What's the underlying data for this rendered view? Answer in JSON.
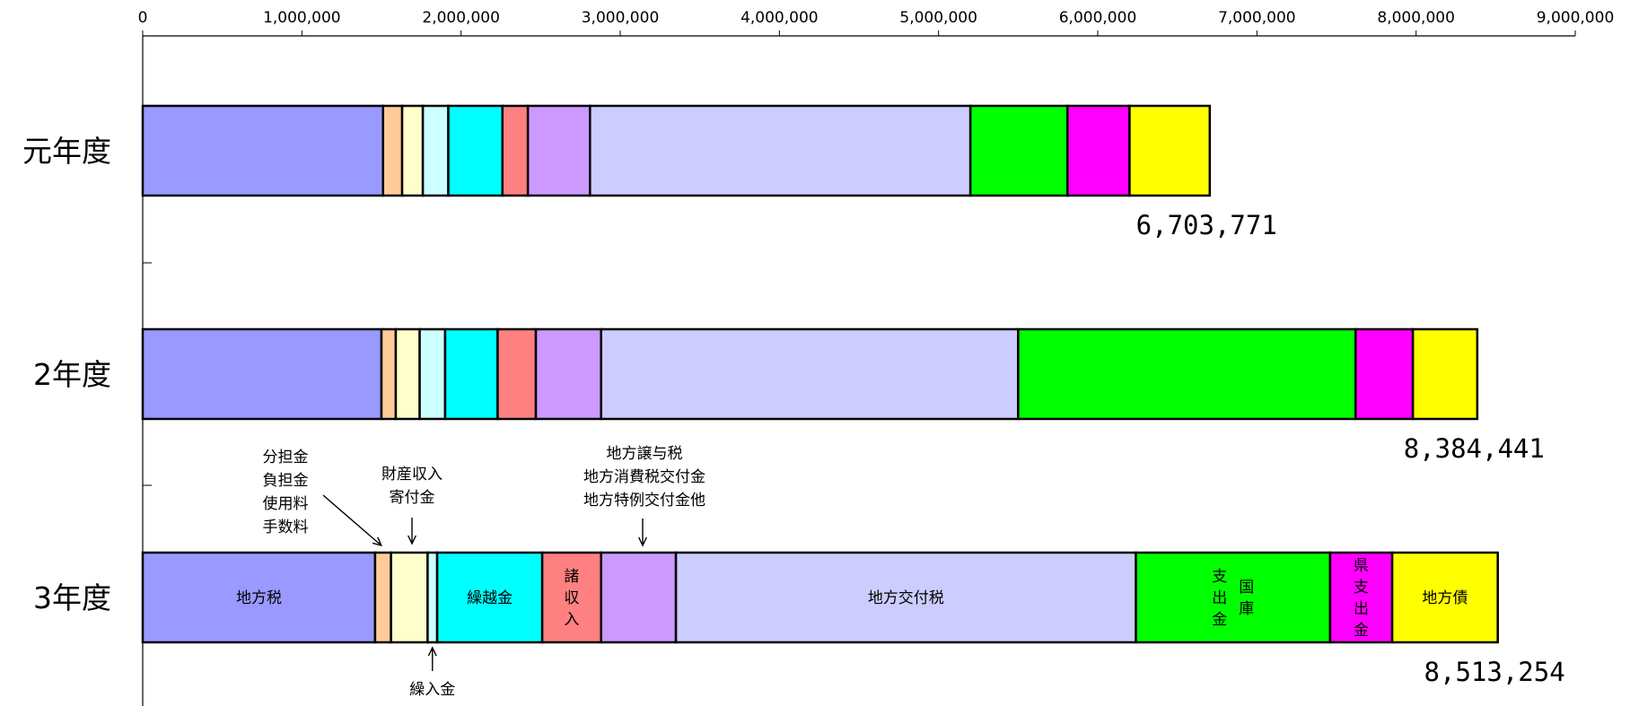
{
  "chart_data": {
    "type": "bar",
    "orientation": "horizontal",
    "stacked": true,
    "xlim": [
      0,
      9000000
    ],
    "xticks": [
      "0",
      "1,000,000",
      "2,000,000",
      "3,000,000",
      "4,000,000",
      "5,000,000",
      "6,000,000",
      "7,000,000",
      "8,000,000",
      "9,000,000"
    ],
    "grid": false,
    "legend": "none",
    "categories": [
      "元年度",
      "2年度",
      "3年度"
    ],
    "totals": [
      "6,703,771",
      "8,384,441",
      "8,513,254"
    ],
    "series": [
      {
        "name": "地方税",
        "color": "#9999ff",
        "values": [
          1510000,
          1500000,
          1460000
        ]
      },
      {
        "name": "分担金 負担金 使用料 手数料",
        "color": "#ffcc99",
        "values": [
          120000,
          90000,
          100000
        ]
      },
      {
        "name": "財産収入 寄付金",
        "color": "#ffffcc",
        "values": [
          130000,
          150000,
          230000
        ]
      },
      {
        "name": "繰入金",
        "color": "#ccffff",
        "values": [
          160000,
          160000,
          60000
        ]
      },
      {
        "name": "繰越金",
        "color": "#00ffff",
        "values": [
          340000,
          330000,
          660000
        ]
      },
      {
        "name": "諸収入",
        "color": "#ff8080",
        "values": [
          160000,
          240000,
          370000
        ]
      },
      {
        "name": "地方譲与税 地方消費税交付金 地方特例交付金他",
        "color": "#cc99ff",
        "values": [
          390000,
          410000,
          470000
        ]
      },
      {
        "name": "地方交付税",
        "color": "#ccccff",
        "values": [
          2390000,
          2620000,
          2890000
        ]
      },
      {
        "name": "国庫支出金",
        "color": "#00ff00",
        "values": [
          610000,
          2120000,
          1220000
        ]
      },
      {
        "name": "県支出金",
        "color": "#ff00ff",
        "values": [
          390000,
          360000,
          390000
        ]
      },
      {
        "name": "地方債",
        "color": "#ffff00",
        "values": [
          503771,
          404441,
          663254
        ]
      }
    ],
    "segment_labels": {
      "地方税": "地方税",
      "繰越金": "繰越金",
      "諸収入": [
        "諸",
        "収",
        "入"
      ],
      "地方交付税": "地方交付税",
      "国庫支出金_col1": [
        "支",
        "出",
        "金"
      ],
      "国庫支出金_col2": [
        "国",
        "庫"
      ],
      "県支出金": [
        "県",
        "支",
        "出",
        "金"
      ],
      "地方債": "地方債"
    },
    "annotations": {
      "bunntan": [
        "分担金",
        "負担金",
        "使用料",
        "手数料"
      ],
      "zaisan": [
        "財産収入",
        "寄付金"
      ],
      "joyo": [
        "地方譲与税",
        "地方消費税交付金",
        "地方特例交付金他"
      ],
      "kurinyu": [
        "繰入金"
      ]
    }
  }
}
